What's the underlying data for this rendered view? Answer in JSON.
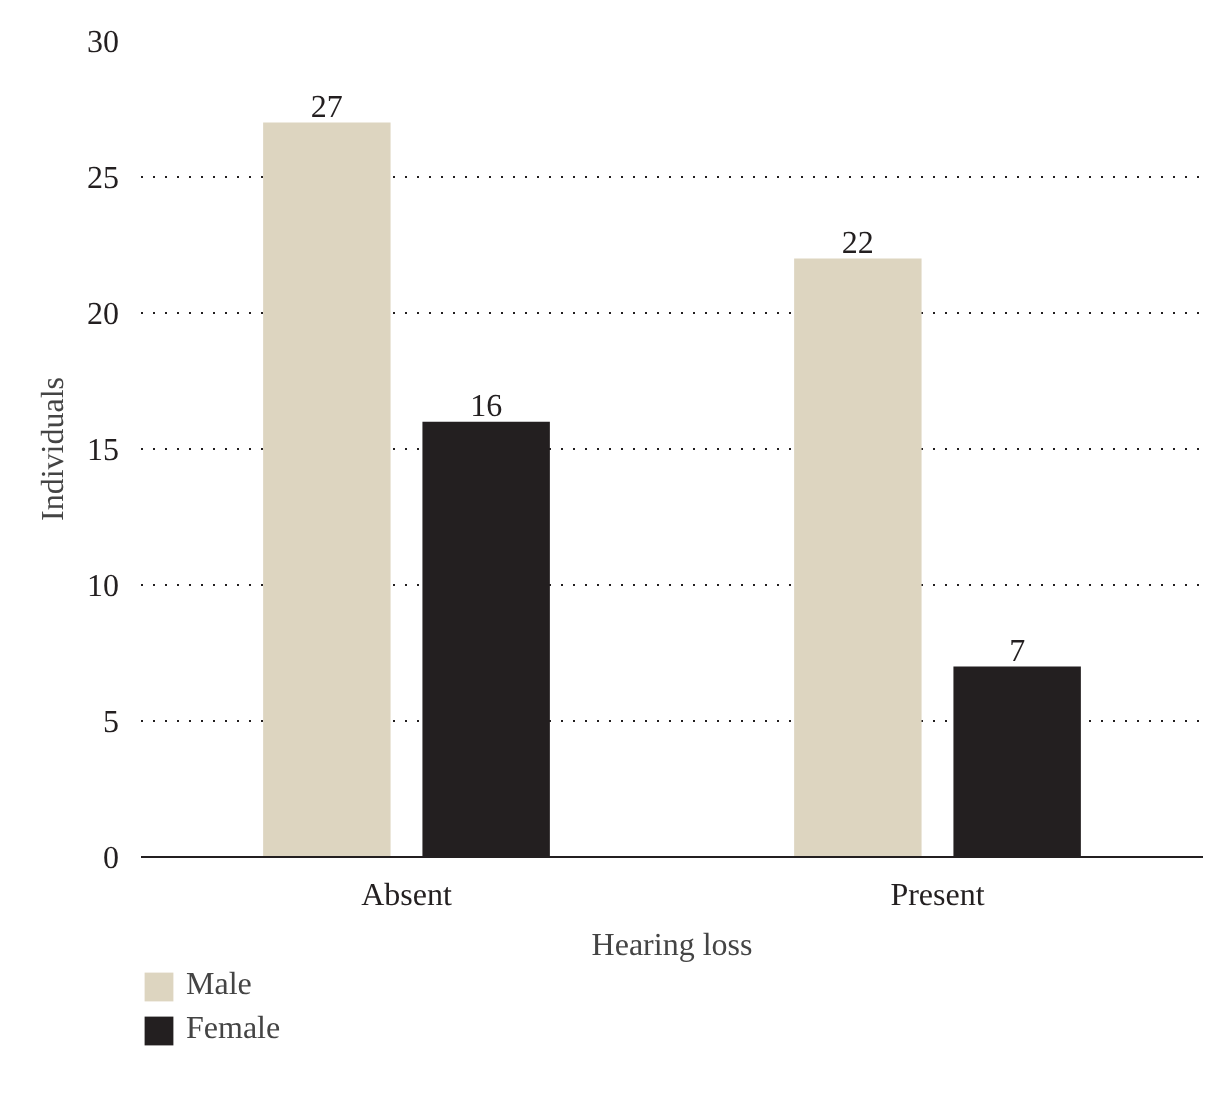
{
  "chart_data": {
    "type": "bar",
    "xlabel": "Hearing loss",
    "ylabel": "Individuals",
    "categories": [
      "Absent",
      "Present"
    ],
    "series": [
      {
        "name": "Male",
        "color": "#ddd5c0",
        "values": [
          27,
          22
        ]
      },
      {
        "name": "Female",
        "color": "#231f20",
        "values": [
          16,
          7
        ]
      }
    ],
    "ylim": [
      0,
      30
    ],
    "yticks": [
      0,
      5,
      10,
      15,
      20,
      25,
      30
    ],
    "grid": "y",
    "legend": "bottom",
    "data_labels": true
  }
}
